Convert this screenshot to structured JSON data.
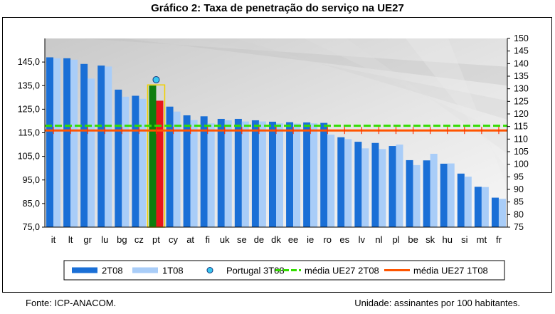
{
  "title": "Gráfico 2: Taxa de penetração do serviço na UE27",
  "footer": {
    "source": "Fonte: ICP-ANACOM.",
    "unit": "Unidade: assinantes por 100 habitantes."
  },
  "colors": {
    "s2T08": "#1a6fd6",
    "s1T08": "#a9cdf8",
    "pt2T08": "#0e7d0e",
    "pt1T08": "#e8161b",
    "portugal3T08": "#39c6f0",
    "media2T08": "#33dd00",
    "media1T08": "#ff5500"
  },
  "chart_data": {
    "type": "bar",
    "title": "Gráfico 2: Taxa de penetração do serviço na UE27",
    "categories": [
      "it",
      "lt",
      "gr",
      "lu",
      "bg",
      "cz",
      "pt",
      "cy",
      "at",
      "fi",
      "uk",
      "se",
      "de",
      "dk",
      "ee",
      "ie",
      "ro",
      "es",
      "lv",
      "nl",
      "pl",
      "be",
      "sk",
      "hu",
      "si",
      "mt",
      "fr"
    ],
    "series": [
      {
        "name": "2T08",
        "values": [
          147.0,
          146.6,
          144.2,
          143.5,
          133.3,
          130.7,
          135.0,
          126.1,
          122.4,
          122.0,
          120.9,
          120.9,
          120.3,
          119.7,
          119.5,
          119.4,
          119.2,
          113.1,
          111.2,
          110.7,
          109.4,
          103.4,
          103.3,
          101.9,
          97.7,
          92.1,
          87.5
        ]
      },
      {
        "name": "1T08",
        "values": [
          146.6,
          146.0,
          138.0,
          143.1,
          130.3,
          129.4,
          128.6,
          124.0,
          120.4,
          119.0,
          120.3,
          119.8,
          119.8,
          119.0,
          118.9,
          119.0,
          114.2,
          112.3,
          108.4,
          108.1,
          110.0,
          101.3,
          106.1,
          102.0,
          96.4,
          92.0,
          87.0
        ]
      },
      {
        "name": "Portugal 3T08",
        "type": "scatter",
        "category": "pt",
        "value": 137.5
      },
      {
        "name": "média UE27 2T08",
        "type": "line",
        "value": 118.0
      },
      {
        "name": "média UE27 1T08",
        "type": "line",
        "value": 116.0
      }
    ],
    "y_left": {
      "min": 75,
      "max": 155,
      "ticks": [
        "75,0",
        "85,0",
        "95,0",
        "105,0",
        "115,0",
        "125,0",
        "135,0",
        "145,0"
      ]
    },
    "y_right": {
      "min": 75,
      "max": 150,
      "ticks": [
        75,
        80,
        85,
        90,
        95,
        100,
        105,
        110,
        115,
        120,
        125,
        130,
        135,
        140,
        145,
        150
      ]
    },
    "grid": false,
    "legend": {
      "position": "bottom",
      "entries": [
        "2T08",
        "1T08",
        "Portugal 3T08",
        "média UE27 2T08",
        "média UE27 1T08"
      ]
    }
  }
}
